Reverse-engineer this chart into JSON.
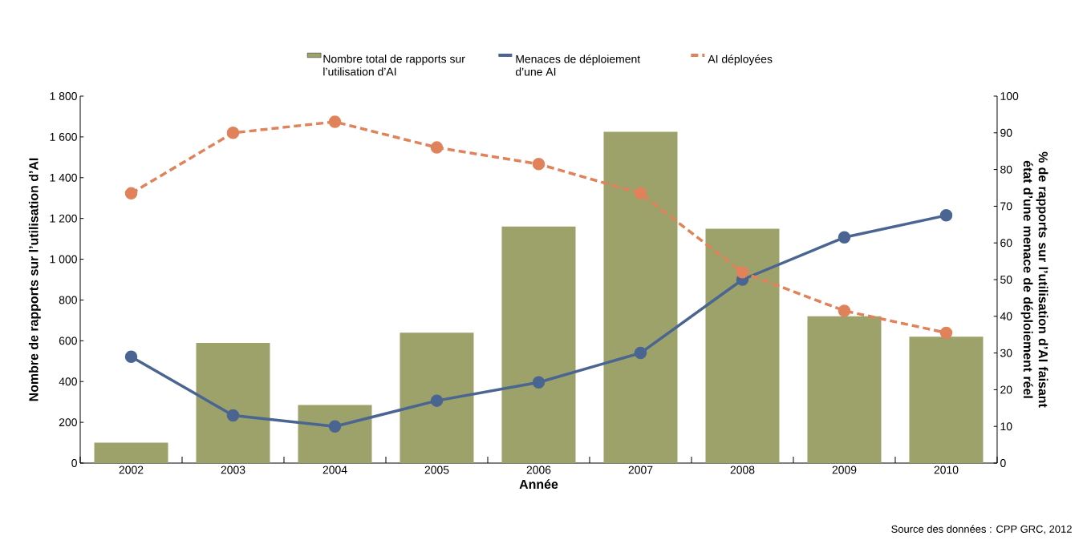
{
  "chart_data": {
    "type": "bar",
    "xlabel": "Année",
    "ylabel": "Nombre de rapports sur l’utilisation d’AI",
    "y2label": "% de rapports sur l’utilisation d’AI faisant état d’une menace de déploiement réel",
    "annotations": [
      "Source des données : CPP GRC, 2012"
    ],
    "categories": [
      "2002",
      "2003",
      "2004",
      "2005",
      "2006",
      "2007",
      "2008",
      "2009",
      "2010"
    ],
    "series": [
      {
        "name": "Nombre total de rapports sur l’utilisation d’AI",
        "color": "#9ca26a",
        "values": [
          100,
          590,
          285,
          640,
          1160,
          1625,
          1150,
          720,
          620
        ]
      },
      {
        "name": "Menaces de déploiement d’une AI",
        "type": "line",
        "axis": "y2",
        "color": "#4a6591",
        "line_style": "solid",
        "marker": "circle",
        "values": [
          29,
          13,
          10,
          17,
          22,
          30,
          50,
          61.5,
          67.5
        ]
      },
      {
        "name": "AI déployées",
        "type": "line",
        "axis": "y2",
        "color": "#e0825a",
        "line_style": "dashed",
        "marker": "circle",
        "values": [
          73.5,
          90,
          93,
          86,
          81.5,
          73.5,
          52,
          41.5,
          35.5
        ]
      }
    ],
    "ylim": [
      0,
      1800
    ],
    "yticks": [
      0,
      {
        "value": 200,
        "label": "200"
      },
      {
        "value": 400,
        "label": "400"
      },
      {
        "value": 600,
        "label": "600"
      },
      {
        "value": 800,
        "label": "800"
      },
      {
        "value": 1000,
        "label": "1 000"
      },
      {
        "value": 1200,
        "label": "1 200"
      },
      {
        "value": 1400,
        "label": "1 400"
      },
      {
        "value": 1600,
        "label": "1 600"
      },
      {
        "value": 1800,
        "label": "1 800"
      }
    ],
    "y2lim": [
      0,
      100
    ],
    "y2ticks": [
      0,
      10,
      20,
      30,
      40,
      50,
      60,
      70,
      80,
      90,
      100
    ],
    "grid": false,
    "legend": "top"
  }
}
